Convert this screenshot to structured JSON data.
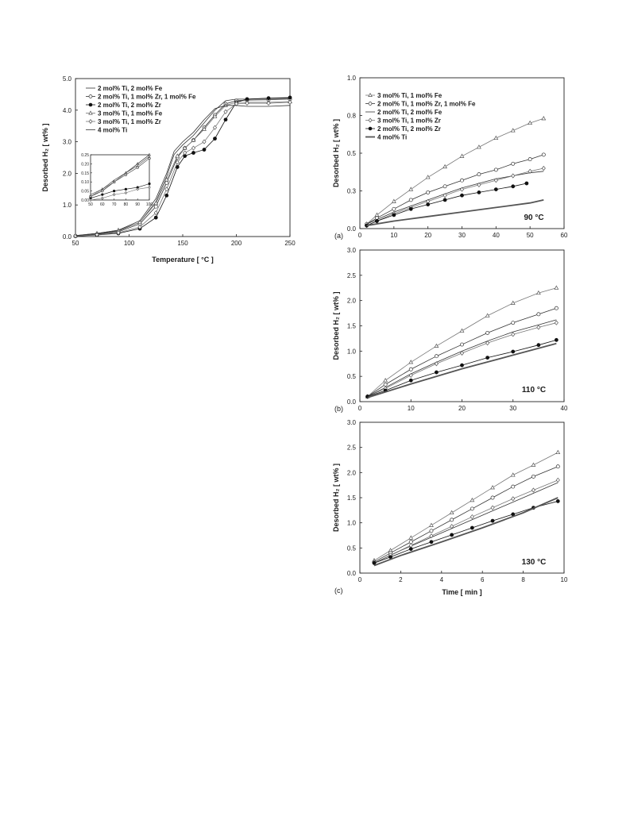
{
  "chart_data": [
    {
      "id": "tpd",
      "type": "line",
      "xlabel": "Temperature [ °C ]",
      "ylabel": "Desorbed H₂ [ wt% ]",
      "xlim": [
        50,
        250
      ],
      "ylim": [
        0,
        5
      ],
      "xticks": [
        "50",
        "100",
        "150",
        "200",
        "250"
      ],
      "yticks": [
        "0.0",
        "1.0",
        "2.0",
        "3.0",
        "4.0",
        "5.0"
      ],
      "legend_position": "top-left",
      "series": [
        {
          "name": "2 mol% Ti, 2 mol% Fe",
          "marker": "none",
          "x": [
            50,
            70,
            90,
            110,
            125,
            135,
            142,
            150,
            160,
            170,
            180,
            190,
            200,
            210,
            230,
            250
          ],
          "y": [
            0.02,
            0.08,
            0.18,
            0.45,
            1.1,
            1.9,
            2.6,
            2.9,
            3.2,
            3.6,
            4.0,
            4.3,
            4.35,
            4.35,
            4.37,
            4.38
          ]
        },
        {
          "name": "2 mol% Ti, 1 mol% Zr, 1 mol% Fe",
          "marker": "circle-open",
          "x": [
            50,
            70,
            90,
            110,
            125,
            135,
            145,
            152,
            160,
            170,
            180,
            190,
            200,
            210,
            230,
            250
          ],
          "y": [
            0.02,
            0.07,
            0.15,
            0.4,
            0.95,
            1.7,
            2.5,
            2.8,
            3.05,
            3.45,
            3.85,
            4.2,
            4.3,
            4.32,
            4.33,
            4.35
          ]
        },
        {
          "name": "2 mol% Ti, 2 mol% Zr",
          "marker": "circle-filled",
          "x": [
            50,
            70,
            90,
            110,
            125,
            135,
            145,
            152,
            160,
            170,
            180,
            190,
            200,
            210,
            230,
            250
          ],
          "y": [
            0.01,
            0.05,
            0.1,
            0.25,
            0.6,
            1.3,
            2.2,
            2.55,
            2.65,
            2.75,
            3.1,
            3.7,
            4.25,
            4.35,
            4.38,
            4.4
          ]
        },
        {
          "name": "3 mol% Ti, 1 mol% Fe",
          "marker": "triangle-open",
          "x": [
            50,
            70,
            90,
            110,
            125,
            135,
            145,
            152,
            160,
            170,
            180,
            190,
            200,
            210,
            230,
            250
          ],
          "y": [
            0.03,
            0.1,
            0.2,
            0.45,
            1.05,
            1.8,
            2.55,
            2.8,
            3.05,
            3.4,
            3.8,
            4.15,
            4.25,
            4.25,
            4.25,
            4.27
          ]
        },
        {
          "name": "3 mol% Ti, 1 mol% Zr",
          "marker": "diamond-open",
          "x": [
            50,
            70,
            90,
            110,
            125,
            135,
            145,
            152,
            160,
            170,
            180,
            190,
            200,
            210,
            230,
            250
          ],
          "y": [
            0.02,
            0.06,
            0.12,
            0.3,
            0.75,
            1.5,
            2.35,
            2.65,
            2.8,
            3.0,
            3.45,
            3.95,
            4.2,
            4.22,
            4.22,
            4.25
          ]
        },
        {
          "name": "4 mol% Ti",
          "marker": "none",
          "x": [
            50,
            70,
            90,
            110,
            125,
            135,
            142,
            150,
            160,
            170,
            180,
            190,
            200,
            210,
            230,
            250
          ],
          "y": [
            0.03,
            0.1,
            0.2,
            0.5,
            1.2,
            2.0,
            2.7,
            3.0,
            3.3,
            3.7,
            4.05,
            4.15,
            4.15,
            4.12,
            4.12,
            4.15
          ]
        }
      ],
      "inset": {
        "xlim": [
          50,
          100
        ],
        "ylim": [
          0,
          0.25
        ],
        "xticks": [
          "50",
          "60",
          "70",
          "80",
          "90",
          "100"
        ],
        "yticks": [
          "0.00",
          "0.05",
          "0.10",
          "0.15",
          "0.20",
          "0.25"
        ],
        "series": [
          {
            "marker": "none",
            "x": [
              50,
              60,
              70,
              80,
              90,
              100
            ],
            "y": [
              0.02,
              0.05,
              0.1,
              0.15,
              0.19,
              0.24
            ]
          },
          {
            "marker": "circle-open",
            "x": [
              50,
              60,
              70,
              80,
              90,
              100
            ],
            "y": [
              0.02,
              0.05,
              0.1,
              0.14,
              0.18,
              0.23
            ]
          },
          {
            "marker": "circle-filled",
            "x": [
              50,
              60,
              70,
              80,
              90,
              100
            ],
            "y": [
              0.01,
              0.03,
              0.05,
              0.06,
              0.07,
              0.09
            ]
          },
          {
            "marker": "triangle-open",
            "x": [
              50,
              60,
              70,
              80,
              90,
              100
            ],
            "y": [
              0.02,
              0.06,
              0.1,
              0.15,
              0.2,
              0.25
            ]
          },
          {
            "marker": "diamond-open",
            "x": [
              50,
              60,
              70,
              80,
              90,
              100
            ],
            "y": [
              0.0,
              0.01,
              0.03,
              0.04,
              0.06,
              0.07
            ]
          },
          {
            "marker": "none",
            "x": [
              50,
              60,
              70,
              80,
              90,
              100
            ],
            "y": [
              0.03,
              0.06,
              0.11,
              0.15,
              0.2,
              0.25
            ]
          }
        ]
      }
    },
    {
      "id": "iso90",
      "type": "line",
      "panel_label": "(a)",
      "annotation": "90 °C",
      "xlabel": "",
      "ylabel": "Desorbed H₂ [ wt% ]",
      "xlim": [
        0,
        60
      ],
      "ylim": [
        0,
        1
      ],
      "xticks": [
        "0",
        "10",
        "20",
        "30",
        "40",
        "50",
        "60"
      ],
      "yticks": [
        "0.0",
        "0.3",
        "0.5",
        "0.8",
        "1.0"
      ],
      "legend_position": "top-left",
      "series": [
        {
          "name": "3 mol% Ti, 1 mol% Fe",
          "marker": "triangle-open",
          "x": [
            2,
            5,
            10,
            15,
            20,
            25,
            30,
            35,
            40,
            45,
            50,
            54
          ],
          "y": [
            0.03,
            0.09,
            0.18,
            0.26,
            0.34,
            0.41,
            0.48,
            0.54,
            0.6,
            0.65,
            0.7,
            0.73
          ]
        },
        {
          "name": "2 mol% Ti, 1 mol% Zr, 1 mol% Fe",
          "marker": "circle-open",
          "x": [
            2,
            5,
            10,
            15,
            20,
            25,
            30,
            35,
            40,
            45,
            50,
            54
          ],
          "y": [
            0.03,
            0.07,
            0.13,
            0.19,
            0.24,
            0.28,
            0.32,
            0.36,
            0.39,
            0.43,
            0.46,
            0.49
          ]
        },
        {
          "name": "2 mol% Ti, 2 mol% Fe",
          "marker": "none",
          "x": [
            2,
            5,
            10,
            15,
            20,
            25,
            30,
            35,
            40,
            45,
            50,
            54
          ],
          "y": [
            0.03,
            0.06,
            0.11,
            0.15,
            0.19,
            0.23,
            0.27,
            0.3,
            0.33,
            0.35,
            0.37,
            0.38
          ]
        },
        {
          "name": "3 mol% Ti, 1 mol% Zr",
          "marker": "diamond-open",
          "x": [
            2,
            5,
            10,
            15,
            20,
            25,
            30,
            35,
            40,
            45,
            50,
            54
          ],
          "y": [
            0.02,
            0.05,
            0.1,
            0.14,
            0.18,
            0.22,
            0.26,
            0.29,
            0.32,
            0.35,
            0.38,
            0.4
          ]
        },
        {
          "name": "2 mol% Ti, 2 mol% Zr",
          "marker": "circle-filled",
          "x": [
            2,
            5,
            10,
            15,
            20,
            25,
            30,
            35,
            40,
            45,
            49
          ],
          "y": [
            0.02,
            0.05,
            0.09,
            0.13,
            0.16,
            0.19,
            0.22,
            0.24,
            0.26,
            0.28,
            0.3
          ]
        },
        {
          "name": "4 mol% Ti",
          "marker": "none-thick",
          "x": [
            2,
            10,
            20,
            30,
            40,
            50,
            54
          ],
          "y": [
            0.02,
            0.05,
            0.08,
            0.11,
            0.14,
            0.17,
            0.19
          ]
        }
      ]
    },
    {
      "id": "iso110",
      "type": "line",
      "panel_label": "(b)",
      "annotation": "110 °C",
      "xlabel": "",
      "ylabel": "Desorbed H₂ [ wt% ]",
      "xlim": [
        0,
        40
      ],
      "ylim": [
        0,
        3
      ],
      "xticks": [
        "0",
        "10",
        "20",
        "30",
        "40"
      ],
      "yticks": [
        "0.0",
        "0.5",
        "1.0",
        "1.5",
        "2.0",
        "2.5",
        "3.0"
      ],
      "series": [
        {
          "name": "3 mol% Ti, 1 mol% Fe",
          "marker": "triangle-open",
          "x": [
            1.5,
            5,
            10,
            15,
            20,
            25,
            30,
            35,
            38.5
          ],
          "y": [
            0.1,
            0.42,
            0.78,
            1.1,
            1.4,
            1.7,
            1.95,
            2.15,
            2.25
          ]
        },
        {
          "name": "2 mol% Ti, 1 mol% Zr, 1 mol% Fe",
          "marker": "circle-open",
          "x": [
            1.5,
            5,
            10,
            15,
            20,
            25,
            30,
            35,
            38.5
          ],
          "y": [
            0.1,
            0.34,
            0.64,
            0.9,
            1.13,
            1.36,
            1.56,
            1.73,
            1.85
          ]
        },
        {
          "name": "2 mol% Ti, 2 mol% Fe",
          "marker": "none",
          "x": [
            1.5,
            5,
            10,
            15,
            20,
            25,
            30,
            35,
            38.5
          ],
          "y": [
            0.1,
            0.28,
            0.55,
            0.78,
            1.0,
            1.2,
            1.38,
            1.52,
            1.62
          ]
        },
        {
          "name": "3 mol% Ti, 1 mol% Zr",
          "marker": "diamond-open",
          "x": [
            1.5,
            5,
            10,
            15,
            20,
            25,
            30,
            35,
            38.5
          ],
          "y": [
            0.1,
            0.26,
            0.52,
            0.75,
            0.96,
            1.16,
            1.33,
            1.47,
            1.56
          ]
        },
        {
          "name": "2 mol% Ti, 2 mol% Zr",
          "marker": "circle-filled",
          "x": [
            1.5,
            5,
            10,
            15,
            20,
            25,
            30,
            35,
            38.5
          ],
          "y": [
            0.1,
            0.22,
            0.42,
            0.58,
            0.72,
            0.87,
            0.99,
            1.12,
            1.22
          ]
        },
        {
          "name": "4 mol% Ti",
          "marker": "none-thick",
          "x": [
            1.5,
            10,
            20,
            30,
            38.5
          ],
          "y": [
            0.08,
            0.35,
            0.65,
            0.92,
            1.15
          ]
        }
      ]
    },
    {
      "id": "iso130",
      "type": "line",
      "panel_label": "(c)",
      "annotation": "130 °C",
      "xlabel": "Time [ min ]",
      "ylabel": "Desorbed H₂ [ wt% ]",
      "xlim": [
        0,
        10
      ],
      "ylim": [
        0,
        3
      ],
      "xticks": [
        "0",
        "2",
        "4",
        "6",
        "8",
        "10"
      ],
      "yticks": [
        "0.0",
        "0.5",
        "1.0",
        "1.5",
        "2.0",
        "2.5",
        "3.0"
      ],
      "series": [
        {
          "name": "3 mol% Ti, 1 mol% Fe",
          "marker": "triangle-open",
          "x": [
            0.7,
            1.5,
            2.5,
            3.5,
            4.5,
            5.5,
            6.5,
            7.5,
            8.5,
            9.7
          ],
          "y": [
            0.25,
            0.45,
            0.7,
            0.95,
            1.2,
            1.45,
            1.7,
            1.95,
            2.15,
            2.4
          ]
        },
        {
          "name": "2 mol% Ti, 1 mol% Zr, 1 mol% Fe",
          "marker": "circle-open",
          "x": [
            0.7,
            1.5,
            2.5,
            3.5,
            4.5,
            5.5,
            6.5,
            7.5,
            8.5,
            9.7
          ],
          "y": [
            0.22,
            0.4,
            0.62,
            0.84,
            1.06,
            1.28,
            1.5,
            1.72,
            1.92,
            2.12
          ]
        },
        {
          "name": "2 mol% Ti, 2 mol% Fe",
          "marker": "none",
          "x": [
            0.7,
            2,
            4,
            6,
            8,
            9.7
          ],
          "y": [
            0.2,
            0.45,
            0.8,
            1.15,
            1.5,
            1.8
          ]
        },
        {
          "name": "3 mol% Ti, 1 mol% Zr",
          "marker": "diamond-open",
          "x": [
            0.7,
            1.5,
            2.5,
            3.5,
            4.5,
            5.5,
            6.5,
            7.5,
            8.5,
            9.7
          ],
          "y": [
            0.2,
            0.36,
            0.55,
            0.74,
            0.93,
            1.12,
            1.3,
            1.48,
            1.65,
            1.85
          ]
        },
        {
          "name": "2 mol% Ti, 2 mol% Zr",
          "marker": "circle-filled",
          "x": [
            0.7,
            1.5,
            2.5,
            3.5,
            4.5,
            5.5,
            6.5,
            7.5,
            8.5,
            9.7
          ],
          "y": [
            0.2,
            0.32,
            0.48,
            0.62,
            0.76,
            0.9,
            1.04,
            1.17,
            1.3,
            1.43
          ]
        },
        {
          "name": "4 mol% Ti",
          "marker": "none-thick",
          "x": [
            0.7,
            2,
            4,
            6,
            8,
            9.7
          ],
          "y": [
            0.15,
            0.35,
            0.62,
            0.9,
            1.2,
            1.5
          ]
        }
      ]
    }
  ]
}
